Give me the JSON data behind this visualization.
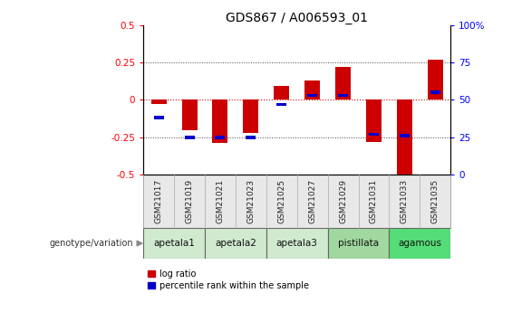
{
  "title": "GDS867 / A006593_01",
  "samples": [
    "GSM21017",
    "GSM21019",
    "GSM21021",
    "GSM21023",
    "GSM21025",
    "GSM21027",
    "GSM21029",
    "GSM21031",
    "GSM21033",
    "GSM21035"
  ],
  "log_ratio": [
    -0.025,
    -0.2,
    -0.29,
    -0.22,
    0.09,
    0.13,
    0.22,
    -0.28,
    -0.5,
    0.27
  ],
  "percentile_rank_raw": [
    38,
    25,
    25,
    25,
    47,
    53,
    53,
    27,
    26,
    55
  ],
  "group_defs": [
    {
      "label": "apetala1",
      "start": 0,
      "end": 1,
      "color": "#d0ead0"
    },
    {
      "label": "apetala2",
      "start": 2,
      "end": 3,
      "color": "#d0ead0"
    },
    {
      "label": "apetala3",
      "start": 4,
      "end": 5,
      "color": "#d0ead0"
    },
    {
      "label": "pistillata",
      "start": 6,
      "end": 7,
      "color": "#a0d8a0"
    },
    {
      "label": "agamous",
      "start": 8,
      "end": 9,
      "color": "#55dd77"
    }
  ],
  "ylim": [
    -0.5,
    0.5
  ],
  "y2lim": [
    0,
    100
  ],
  "y_ticks": [
    -0.5,
    -0.25,
    0,
    0.25,
    0.5
  ],
  "y2_ticks": [
    0,
    25,
    50,
    75,
    100
  ],
  "bar_color": "#cc0000",
  "blue_color": "#0000cc",
  "bar_width": 0.5,
  "genotype_label": "genotype/variation",
  "legend_log": "log ratio",
  "legend_pct": "percentile rank within the sample",
  "tick_fontsize": 7.5,
  "title_fontsize": 10,
  "sample_fontsize": 6.5,
  "group_fontsize": 7.5,
  "legend_fontsize": 7
}
